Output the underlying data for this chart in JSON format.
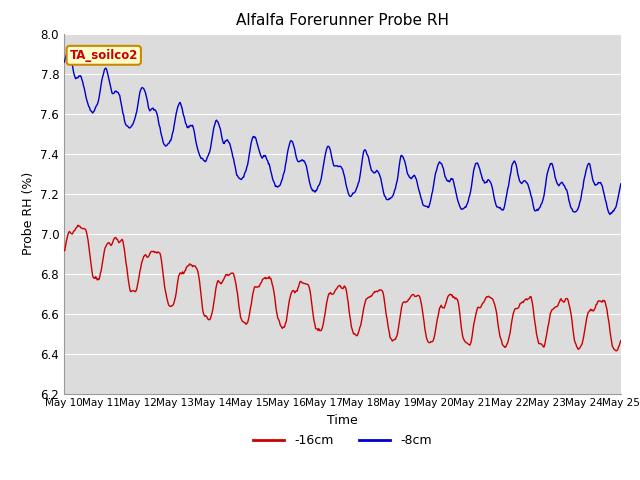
{
  "title": "Alfalfa Forerunner Probe RH",
  "xlabel": "Time",
  "ylabel": "Probe RH (%)",
  "ylim": [
    6.2,
    8.0
  ],
  "yticks": [
    6.2,
    6.4,
    6.6,
    6.8,
    7.0,
    7.2,
    7.4,
    7.6,
    7.8,
    8.0
  ],
  "x_tick_labels": [
    "May 10",
    "May 11",
    "May 12",
    "May 13",
    "May 14",
    "May 15",
    "May 16",
    "May 17",
    "May 18",
    "May 19",
    "May 20",
    "May 21",
    "May 22",
    "May 23",
    "May 24",
    "May 25"
  ],
  "color_red": "#cc0000",
  "color_blue": "#0000cc",
  "legend_label_red": "-16cm",
  "legend_label_blue": "-8cm",
  "annotation_text": "TA_soilco2"
}
